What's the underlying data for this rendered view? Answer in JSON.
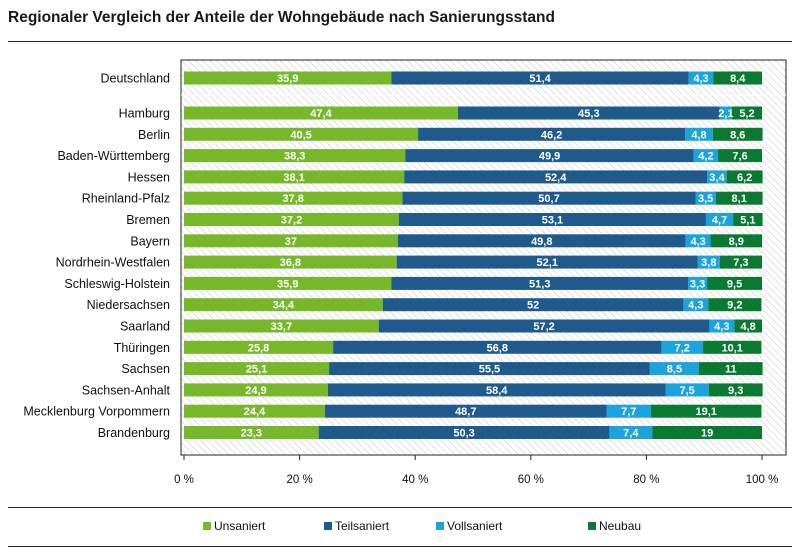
{
  "title": "Regionaler Vergleich der Anteile der Wohngebäude nach Sanierungsstand",
  "chart_data": {
    "type": "bar",
    "orientation": "horizontal",
    "stacked": true,
    "percent": true,
    "categories": [
      "Deutschland",
      "Hamburg",
      "Berlin",
      "Baden-Württemberg",
      "Hessen",
      "Rheinland-Pfalz",
      "Bremen",
      "Bayern",
      "Nordrhein-Westfalen",
      "Schleswig-Holstein",
      "Niedersachsen",
      "Saarland",
      "Thüringen",
      "Sachsen",
      "Sachsen-Anhalt",
      "Mecklenburg Vorpommern",
      "Brandenburg"
    ],
    "series": [
      {
        "name": "Unsaniert",
        "color": "#76b82a",
        "values": [
          35.9,
          47.4,
          40.5,
          38.3,
          38.1,
          37.8,
          37.2,
          37,
          36.8,
          35.9,
          34.4,
          33.7,
          25.8,
          25.1,
          24.9,
          24.4,
          23.3
        ],
        "labels": [
          "35,9",
          "47,4",
          "40,5",
          "38,3",
          "38,1",
          "37,8",
          "37,2",
          "37",
          "36,8",
          "35,9",
          "34,4",
          "33,7",
          "25,8",
          "25,1",
          "24,9",
          "24,4",
          "23,3"
        ]
      },
      {
        "name": "Teilsaniert",
        "color": "#1f5a8c",
        "values": [
          51.4,
          45.3,
          46.2,
          49.9,
          52.4,
          50.7,
          53.1,
          49.8,
          52.1,
          51.3,
          52,
          57.2,
          56.8,
          55.5,
          58.4,
          48.7,
          50.3
        ],
        "labels": [
          "51,4",
          "45,3",
          "46,2",
          "49,9",
          "52,4",
          "50,7",
          "53,1",
          "49,8",
          "52,1",
          "51,3",
          "52",
          "57,2",
          "56,8",
          "55,5",
          "58,4",
          "48,7",
          "50,3"
        ]
      },
      {
        "name": "Vollsaniert",
        "color": "#1aa3dc",
        "values": [
          4.3,
          2.1,
          4.8,
          4.2,
          3.4,
          3.5,
          4.7,
          4.3,
          3.8,
          3.3,
          4.3,
          4.3,
          7.2,
          8.5,
          7.5,
          7.7,
          7.4
        ],
        "labels": [
          "4,3",
          "2,1",
          "4,8",
          "4,2",
          "3,4",
          "3,5",
          "4,7",
          "4,3",
          "3,8",
          "3,3",
          "4,3",
          "4,3",
          "7,2",
          "8,5",
          "7,5",
          "7,7",
          "7,4"
        ]
      },
      {
        "name": "Neubau",
        "color": "#0a7a32",
        "values": [
          8.4,
          5.2,
          8.6,
          7.6,
          6.2,
          8.1,
          5.1,
          8.9,
          7.3,
          9.5,
          9.2,
          4.8,
          10.1,
          11,
          9.3,
          19.1,
          19
        ],
        "labels": [
          "8,4",
          "5,2",
          "8,6",
          "7,6",
          "6,2",
          "8,1",
          "5,1",
          "8,9",
          "7,3",
          "9,5",
          "9,2",
          "4,8",
          "10,1",
          "11",
          "9,3",
          "19,1",
          "19"
        ]
      }
    ],
    "x_ticks": [
      "0 %",
      "20 %",
      "40 %",
      "60 %",
      "80 %",
      "100 %"
    ],
    "xlim": [
      0,
      100
    ],
    "legend_position": "bottom",
    "background_pattern": "diagonal-hatch"
  }
}
